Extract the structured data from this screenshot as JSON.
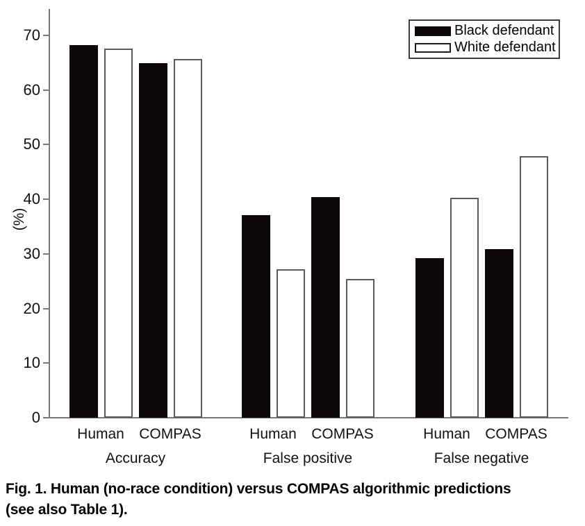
{
  "figure": {
    "caption_line1": "Fig. 1. Human (no-race condition) versus COMPAS algorithmic predictions",
    "caption_line2": "(see also Table 1)."
  },
  "chart_data": {
    "type": "bar",
    "title": "",
    "xlabel": "",
    "ylabel": "(%)",
    "ylim": [
      0,
      75
    ],
    "yticks": [
      0,
      10,
      20,
      30,
      40,
      50,
      60,
      70
    ],
    "grid": false,
    "legend_position": "top-right",
    "categories": [
      "Accuracy",
      "False positive",
      "False negative"
    ],
    "subcategories": [
      "Human",
      "COMPAS"
    ],
    "series": [
      {
        "name": "Black defendant",
        "fill": "#0d0708",
        "values": [
          [
            68.2,
            64.9
          ],
          [
            37.1,
            40.4
          ],
          [
            29.2,
            30.9
          ]
        ]
      },
      {
        "name": "White defendant",
        "fill": "#ffffff",
        "values": [
          [
            67.6,
            65.7
          ],
          [
            27.2,
            25.4
          ],
          [
            40.3,
            47.9
          ]
        ]
      }
    ]
  }
}
